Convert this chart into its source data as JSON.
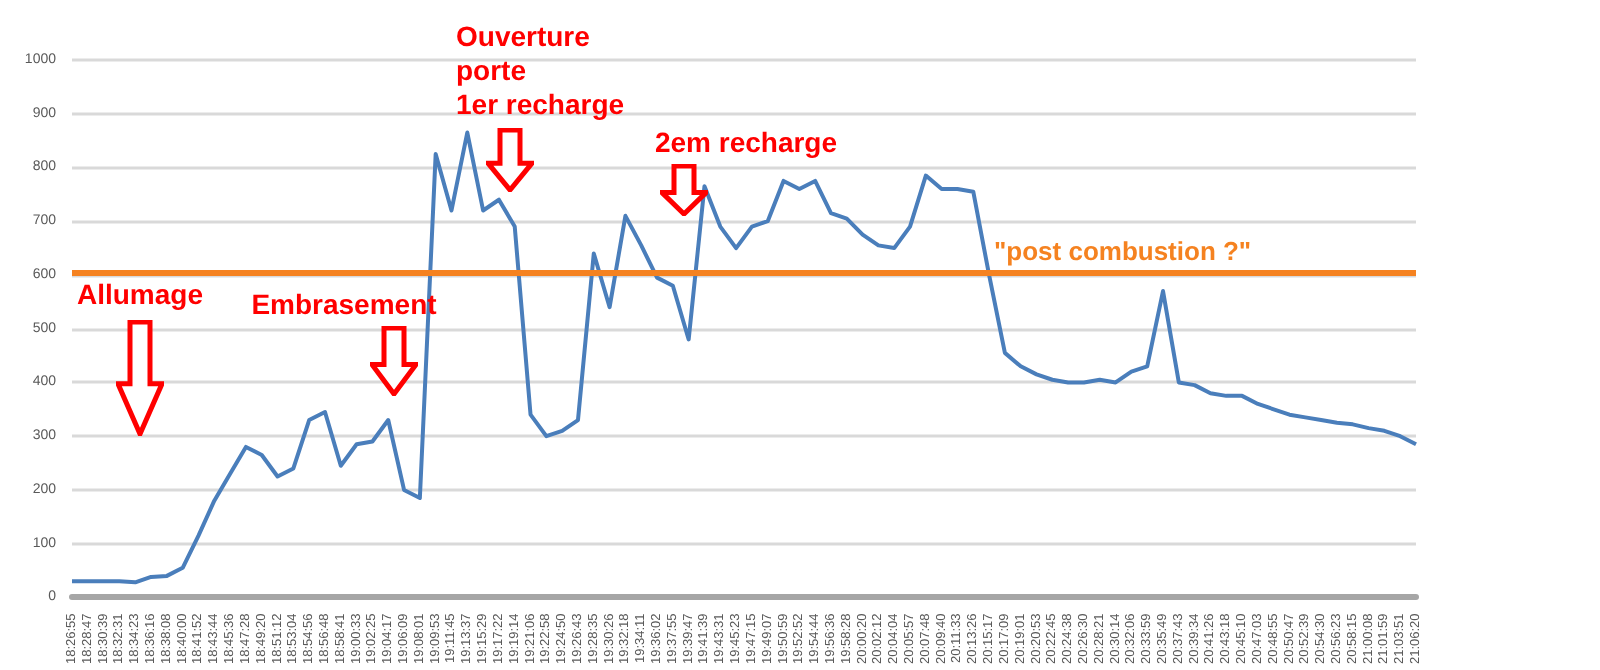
{
  "chart_data": {
    "type": "line",
    "categories": [
      "18:26:55",
      "18:28:47",
      "18:30:39",
      "18:32:31",
      "18:34:23",
      "18:36:16",
      "18:38:08",
      "18:40:00",
      "18:41:52",
      "18:43:44",
      "18:45:36",
      "18:47:28",
      "18:49:20",
      "18:51:12",
      "18:53:04",
      "18:54:56",
      "18:56:48",
      "18:58:41",
      "19:00:33",
      "19:02:25",
      "19:04:17",
      "19:06:09",
      "19:08:01",
      "19:09:53",
      "19:11:45",
      "19:13:37",
      "19:15:29",
      "19:17:22",
      "19:19:14",
      "19:21:06",
      "19:22:58",
      "19:24:50",
      "19:26:43",
      "19:28:35",
      "19:30:26",
      "19:32:18",
      "19:34:11",
      "19:36:02",
      "19:37:55",
      "19:39:47",
      "19:41:39",
      "19:43:31",
      "19:45:23",
      "19:47:15",
      "19:49:07",
      "19:50:59",
      "19:52:52",
      "19:54:44",
      "19:56:36",
      "19:58:28",
      "20:00:20",
      "20:02:12",
      "20:04:04",
      "20:05:57",
      "20:07:48",
      "20:09:40",
      "20:11:33",
      "20:13:26",
      "20:15:17",
      "20:17:09",
      "20:19:01",
      "20:20:53",
      "20:22:45",
      "20:24:38",
      "20:26:30",
      "20:28:21",
      "20:30:14",
      "20:32:06",
      "20:33:59",
      "20:35:49",
      "20:37:43",
      "20:39:34",
      "20:41:26",
      "20:43:18",
      "20:45:10",
      "20:47:03",
      "20:48:55",
      "20:50:47",
      "20:52:39",
      "20:54:30",
      "20:56:23",
      "20:58:15",
      "21:00:08",
      "21:01:59",
      "21:03:51",
      "21:06:20"
    ],
    "series": [
      {
        "color": "#4a7ebb",
        "values": [
          30,
          30,
          30,
          30,
          28,
          38,
          40,
          55,
          115,
          180,
          230,
          280,
          265,
          225,
          240,
          330,
          345,
          245,
          285,
          290,
          330,
          200,
          185,
          825,
          720,
          865,
          720,
          740,
          690,
          340,
          300,
          310,
          330,
          640,
          540,
          710,
          655,
          595,
          580,
          480,
          765,
          690,
          650,
          690,
          700,
          775,
          760,
          775,
          715,
          705,
          675,
          655,
          650,
          690,
          785,
          760,
          760,
          755,
          600,
          455,
          430,
          415,
          405,
          400,
          400,
          405,
          400,
          420,
          430,
          570,
          400,
          395,
          380,
          375,
          375,
          360,
          350,
          340,
          335,
          330,
          325,
          322,
          315,
          310,
          300,
          285
        ]
      }
    ],
    "ylim": [
      0,
      1000
    ],
    "yticks": [
      0,
      100,
      200,
      300,
      400,
      500,
      600,
      700,
      800,
      900,
      1000
    ],
    "grid": "y",
    "marker": "none",
    "line_style": "solid",
    "ref_lines": [
      {
        "axis": "y",
        "value": 605,
        "label": "\"post combustion ?\"",
        "color": "#f58220"
      }
    ],
    "annotations": [
      "Allumage",
      "Embrasement",
      "Ouverture\nporte\n1er recharge",
      "2em recharge"
    ]
  }
}
